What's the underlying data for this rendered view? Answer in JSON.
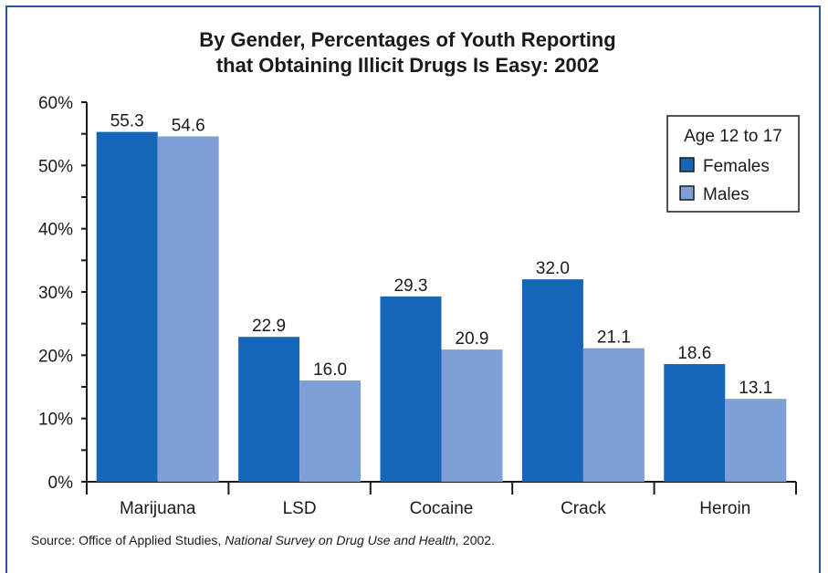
{
  "chart_data": {
    "type": "bar",
    "title_line1": "By Gender, Percentages of Youth Reporting",
    "title_line2": "that Obtaining Illicit Drugs Is Easy:  2002",
    "categories": [
      "Marijuana",
      "LSD",
      "Cocaine",
      "Crack",
      "Heroin"
    ],
    "series": [
      {
        "name": "Females",
        "values": [
          55.3,
          22.9,
          29.3,
          32.0,
          18.6
        ],
        "labels": [
          "55.3",
          "22.9",
          "29.3",
          "32.0",
          "18.6"
        ],
        "color": "#1565b8"
      },
      {
        "name": "Males",
        "values": [
          54.6,
          16.0,
          20.9,
          21.1,
          13.1
        ],
        "labels": [
          "54.6",
          "16.0",
          "20.9",
          "21.1",
          "13.1"
        ],
        "color": "#7f9fd6"
      }
    ],
    "ylim": [
      0,
      60
    ],
    "yticks": [
      "0%",
      "10%",
      "20%",
      "30%",
      "40%",
      "50%",
      "60%"
    ],
    "legend_title": "Age 12 to 17",
    "legend_position": "top-right",
    "grid": false
  },
  "source": {
    "prefix": "Source:  Office of Applied Studies, ",
    "italic": "National Survey on Drug Use and Health,",
    "suffix": " 2002."
  }
}
